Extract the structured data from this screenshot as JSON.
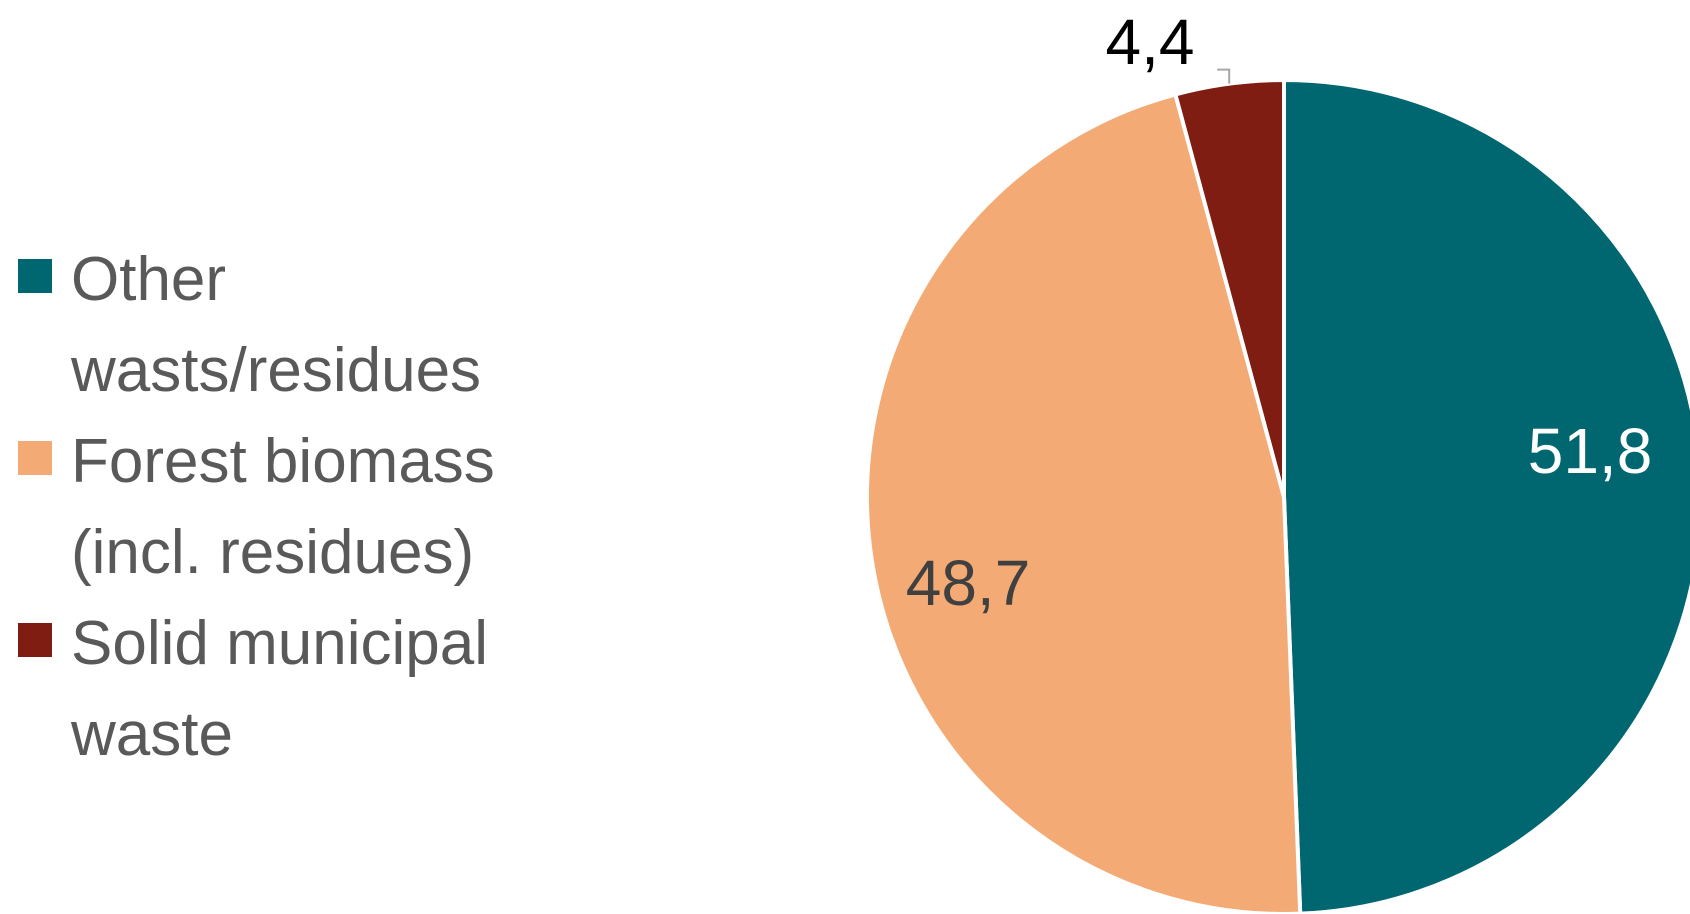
{
  "chart_data": {
    "type": "pie",
    "categories": [
      "Other wasts/residues",
      "Forest biomass (incl. residues)",
      "Solid municipal waste"
    ],
    "legend": [
      {
        "lines": [
          "Other",
          "wasts/residues"
        ],
        "color": "#006770"
      },
      {
        "lines": [
          "Forest biomass",
          "(incl. residues)"
        ],
        "color": "#F4AA74"
      },
      {
        "lines": [
          "Solid municipal",
          "waste"
        ],
        "color": "#7F1D12"
      }
    ],
    "values": [
      51.8,
      48.7,
      4.4
    ],
    "data_labels": [
      "51,8",
      "48,7",
      "4,4"
    ],
    "label_colors": [
      "#ffffff",
      "#404040",
      "#000000"
    ],
    "legend_placement": "left",
    "title": ""
  }
}
